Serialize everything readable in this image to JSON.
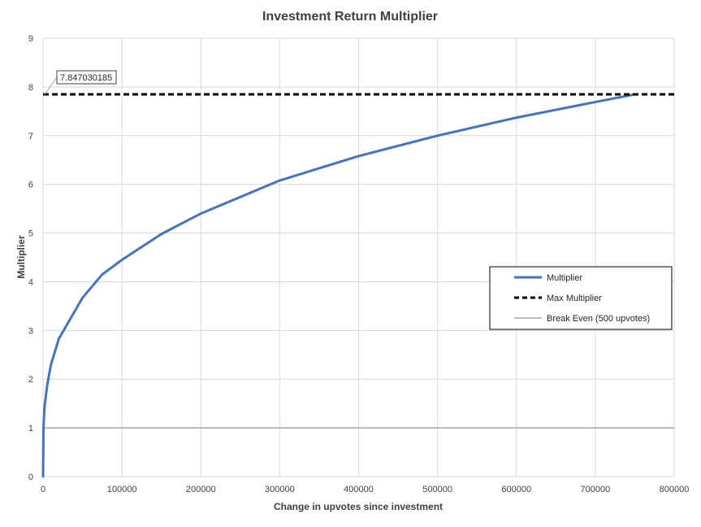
{
  "chart_data": {
    "type": "line",
    "title": "Investment Return Multiplier",
    "xlabel": "Change in upvotes since investment",
    "ylabel": "Multiplier",
    "xlim": [
      0,
      800000
    ],
    "ylim": [
      0,
      9
    ],
    "x_ticks": [
      0,
      100000,
      200000,
      300000,
      400000,
      500000,
      600000,
      700000,
      800000
    ],
    "y_ticks": [
      0,
      1,
      2,
      3,
      4,
      5,
      6,
      7,
      8,
      9
    ],
    "grid": true,
    "legend_position": "right",
    "annotation": {
      "text": "7.847030185",
      "x": 0,
      "y": 7.847030185
    },
    "series": [
      {
        "name": "Multiplier",
        "style": "solid",
        "color": "#4472C4",
        "points": [
          [
            0,
            0
          ],
          [
            500,
            1.0
          ],
          [
            2000,
            1.45
          ],
          [
            5000,
            1.85
          ],
          [
            10000,
            2.3
          ],
          [
            20000,
            2.83
          ],
          [
            50000,
            3.67
          ],
          [
            75000,
            4.15
          ],
          [
            100000,
            4.45
          ],
          [
            150000,
            4.98
          ],
          [
            200000,
            5.4
          ],
          [
            300000,
            6.08
          ],
          [
            400000,
            6.58
          ],
          [
            500000,
            7.0
          ],
          [
            600000,
            7.37
          ],
          [
            700000,
            7.69
          ],
          [
            750000,
            7.847
          ]
        ]
      },
      {
        "name": "Max Multiplier",
        "style": "dashed",
        "color": "#000000",
        "points": [
          [
            0,
            7.847030185
          ],
          [
            800000,
            7.847030185
          ]
        ]
      },
      {
        "name": "Break Even (500 upvotes)",
        "style": "solid-thin",
        "color": "#A5A5A5",
        "points": [
          [
            0,
            1
          ],
          [
            800000,
            1
          ]
        ]
      }
    ]
  }
}
